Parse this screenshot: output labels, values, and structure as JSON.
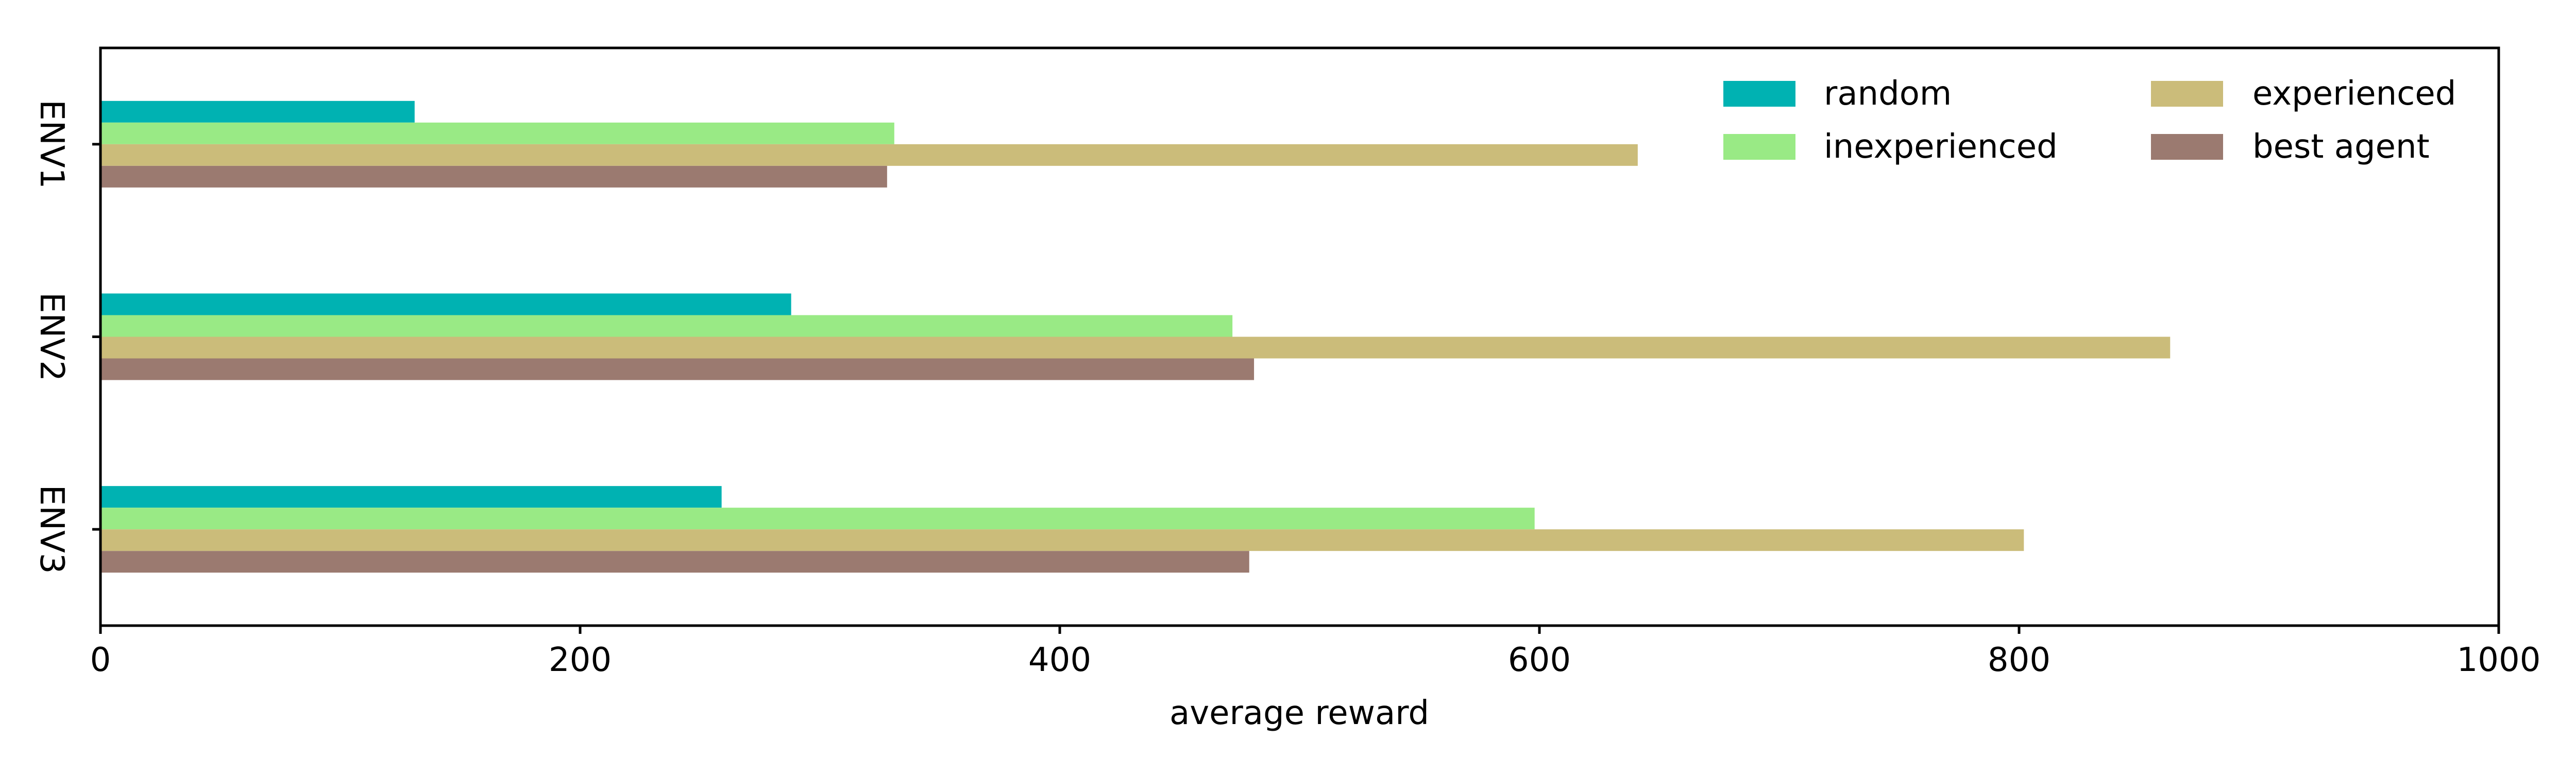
{
  "chart_data": {
    "type": "bar",
    "orientation": "horizontal",
    "title": "",
    "xlabel": "average reward",
    "ylabel": "",
    "xlim": [
      0,
      1000
    ],
    "x_ticks": [
      0,
      200,
      400,
      600,
      800,
      1000
    ],
    "x_tick_labels": [
      "0",
      "200",
      "400",
      "600",
      "800",
      "1000"
    ],
    "categories": [
      "ENV1",
      "ENV2",
      "ENV3"
    ],
    "grid": false,
    "legend_position": "top-right",
    "series": [
      {
        "name": "random",
        "color": "#00b2b2",
        "values": [
          131,
          288,
          259
        ]
      },
      {
        "name": "inexperienced",
        "color": "#99ea85",
        "values": [
          331,
          472,
          598
        ]
      },
      {
        "name": "experienced",
        "color": "#cbbc7a",
        "values": [
          641,
          863,
          802
        ]
      },
      {
        "name": "best agent",
        "color": "#9b7a70",
        "values": [
          328,
          481,
          479
        ]
      }
    ]
  }
}
